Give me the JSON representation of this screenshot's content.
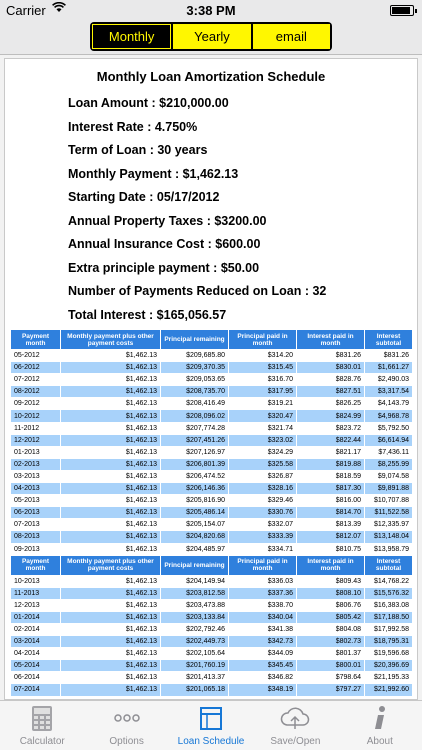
{
  "status": {
    "carrier": "Carrier",
    "time": "3:38 PM",
    "battery_level": 0.9
  },
  "segments": [
    {
      "label": "Monthly",
      "selected": true
    },
    {
      "label": "Yearly",
      "selected": false
    },
    {
      "label": "email",
      "selected": false
    }
  ],
  "summary": {
    "title": "Monthly Loan Amortization Schedule",
    "lines": [
      "Loan Amount : $210,000.00",
      "Interest Rate : 4.750%",
      "Term of Loan : 30 years",
      "Monthly Payment : $1,462.13",
      "Starting Date : 05/17/2012",
      "Annual Property Taxes : $3200.00",
      "Annual Insurance Cost : $600.00",
      "Extra principle payment : $50.00",
      "Number of Payments Reduced on Loan : 32",
      "Total Interest : $165,056.57"
    ]
  },
  "table": {
    "headers": [
      "Payment month",
      "Monthly payment plus other payment costs",
      "Principal remaining",
      "Principal paid in month",
      "Interest paid in month",
      "Interest subtotal"
    ],
    "sections": [
      {
        "rows": [
          [
            "05-2012",
            "$1,462.13",
            "$209,685.80",
            "$314.20",
            "$831.26",
            "$831.26"
          ],
          [
            "06-2012",
            "$1,462.13",
            "$209,370.35",
            "$315.45",
            "$830.01",
            "$1,661.27"
          ],
          [
            "07-2012",
            "$1,462.13",
            "$209,053.65",
            "$316.70",
            "$828.76",
            "$2,490.03"
          ],
          [
            "08-2012",
            "$1,462.13",
            "$208,735.70",
            "$317.95",
            "$827.51",
            "$3,317.54"
          ],
          [
            "09-2012",
            "$1,462.13",
            "$208,416.49",
            "$319.21",
            "$826.25",
            "$4,143.79"
          ],
          [
            "10-2012",
            "$1,462.13",
            "$208,096.02",
            "$320.47",
            "$824.99",
            "$4,968.78"
          ],
          [
            "11-2012",
            "$1,462.13",
            "$207,774.28",
            "$321.74",
            "$823.72",
            "$5,792.50"
          ],
          [
            "12-2012",
            "$1,462.13",
            "$207,451.26",
            "$323.02",
            "$822.44",
            "$6,614.94"
          ],
          [
            "01-2013",
            "$1,462.13",
            "$207,126.97",
            "$324.29",
            "$821.17",
            "$7,436.11"
          ],
          [
            "02-2013",
            "$1,462.13",
            "$206,801.39",
            "$325.58",
            "$819.88",
            "$8,255.99"
          ],
          [
            "03-2013",
            "$1,462.13",
            "$206,474.52",
            "$326.87",
            "$818.59",
            "$9,074.58"
          ],
          [
            "04-2013",
            "$1,462.13",
            "$206,146.36",
            "$328.16",
            "$817.30",
            "$9,891.88"
          ],
          [
            "05-2013",
            "$1,462.13",
            "$205,816.90",
            "$329.46",
            "$816.00",
            "$10,707.88"
          ],
          [
            "06-2013",
            "$1,462.13",
            "$205,486.14",
            "$330.76",
            "$814.70",
            "$11,522.58"
          ],
          [
            "07-2013",
            "$1,462.13",
            "$205,154.07",
            "$332.07",
            "$813.39",
            "$12,335.97"
          ],
          [
            "08-2013",
            "$1,462.13",
            "$204,820.68",
            "$333.39",
            "$812.07",
            "$13,148.04"
          ],
          [
            "09-2013",
            "$1,462.13",
            "$204,485.97",
            "$334.71",
            "$810.75",
            "$13,958.79"
          ]
        ]
      },
      {
        "rows": [
          [
            "10-2013",
            "$1,462.13",
            "$204,149.94",
            "$336.03",
            "$809.43",
            "$14,768.22"
          ],
          [
            "11-2013",
            "$1,462.13",
            "$203,812.58",
            "$337.36",
            "$808.10",
            "$15,576.32"
          ],
          [
            "12-2013",
            "$1,462.13",
            "$203,473.88",
            "$338.70",
            "$806.76",
            "$16,383.08"
          ],
          [
            "01-2014",
            "$1,462.13",
            "$203,133.84",
            "$340.04",
            "$805.42",
            "$17,188.50"
          ],
          [
            "02-2014",
            "$1,462.13",
            "$202,792.46",
            "$341.38",
            "$804.08",
            "$17,992.58"
          ],
          [
            "03-2014",
            "$1,462.13",
            "$202,449.73",
            "$342.73",
            "$802.73",
            "$18,795.31"
          ],
          [
            "04-2014",
            "$1,462.13",
            "$202,105.64",
            "$344.09",
            "$801.37",
            "$19,596.68"
          ],
          [
            "05-2014",
            "$1,462.13",
            "$201,760.19",
            "$345.45",
            "$800.01",
            "$20,396.69"
          ],
          [
            "06-2014",
            "$1,462.13",
            "$201,413.37",
            "$346.82",
            "$798.64",
            "$21,195.33"
          ],
          [
            "07-2014",
            "$1,462.13",
            "$201,065.18",
            "$348.19",
            "$797.27",
            "$21,992.60"
          ]
        ]
      }
    ]
  },
  "tabs": [
    {
      "label": "Calculator",
      "icon": "calculator-icon",
      "active": false
    },
    {
      "label": "Options",
      "icon": "ellipsis-icon",
      "active": false
    },
    {
      "label": "Loan Schedule",
      "icon": "schedule-grid-icon",
      "active": true
    },
    {
      "label": "Save/Open",
      "icon": "cloud-icon",
      "active": false
    },
    {
      "label": "About",
      "icon": "info-icon",
      "active": false
    }
  ],
  "colors": {
    "accent": "#1677d6",
    "segment_yellow": "#fff700",
    "header_blue": "#2f80dd",
    "row_alt": "#a8d2fa"
  }
}
